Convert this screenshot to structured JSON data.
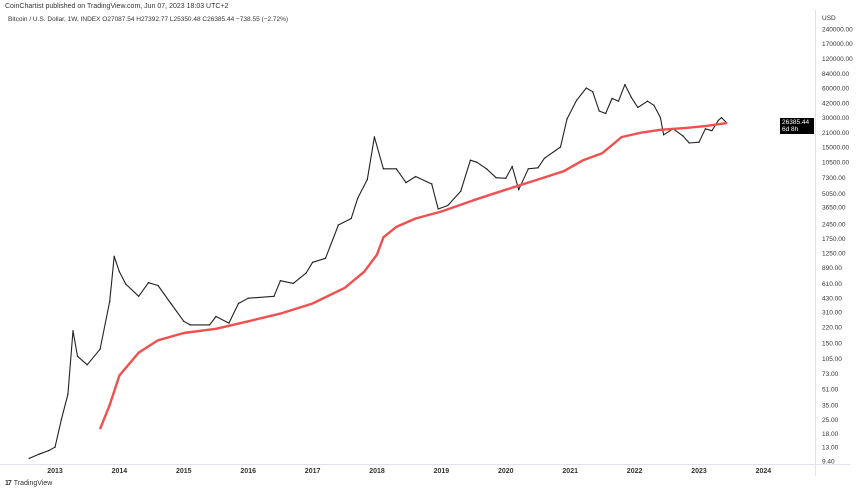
{
  "header": {
    "published": "CoinChartist published on TradingView.com, Jun 07, 2023 18:03 UTC+2",
    "symbol_line": "Bitcoin / U.S. Dollar, 1W, INDEX  O27087.54  H27392.77  L25350.48  C26385.44  −738.55 (−2.72%)"
  },
  "footer": {
    "brand": "TradingView"
  },
  "price_label": {
    "price": "26385.44",
    "countdown": "6d 8h"
  },
  "colors": {
    "price": "#222222",
    "ma": "#f0504f",
    "label_bg": "#000000"
  },
  "chart_data": {
    "type": "line",
    "y_scale": "log",
    "currency": "USD",
    "ylim": [
      9.4,
      240000
    ],
    "xlim": [
      2012.6,
      2024.7
    ],
    "y_ticks": [
      "240000.00",
      "170000.00",
      "120000.00",
      "84000.00",
      "60000.00",
      "42000.00",
      "30000.00",
      "21000.00",
      "15000.00",
      "10500.00",
      "7300.00",
      "5050.00",
      "3650.00",
      "2450.00",
      "1750.00",
      "1250.00",
      "890.00",
      "610.00",
      "430.00",
      "310.00",
      "220.00",
      "150.00",
      "105.00",
      "73.00",
      "51.00",
      "35.00",
      "25.00",
      "18.00",
      "13.00",
      "9.40"
    ],
    "x_ticks": [
      "2013",
      "2014",
      "2015",
      "2016",
      "2017",
      "2018",
      "2019",
      "2020",
      "2021",
      "2022",
      "2023",
      "2024"
    ],
    "grid": false,
    "series": [
      {
        "role": "price",
        "x": [
          2012.6,
          2012.75,
          2012.9,
          2013.0,
          2013.1,
          2013.2,
          2013.28,
          2013.35,
          2013.5,
          2013.7,
          2013.85,
          2013.92,
          2014.0,
          2014.1,
          2014.3,
          2014.45,
          2014.6,
          2014.8,
          2015.0,
          2015.1,
          2015.4,
          2015.5,
          2015.7,
          2015.85,
          2016.0,
          2016.4,
          2016.5,
          2016.7,
          2016.9,
          2017.0,
          2017.2,
          2017.4,
          2017.6,
          2017.7,
          2017.85,
          2017.96,
          2018.1,
          2018.3,
          2018.45,
          2018.6,
          2018.85,
          2018.95,
          2019.1,
          2019.3,
          2019.45,
          2019.55,
          2019.7,
          2019.85,
          2020.0,
          2020.1,
          2020.2,
          2020.35,
          2020.5,
          2020.6,
          2020.85,
          2020.95,
          2021.1,
          2021.25,
          2021.35,
          2021.45,
          2021.55,
          2021.65,
          2021.75,
          2021.85,
          2021.95,
          2022.05,
          2022.2,
          2022.3,
          2022.4,
          2022.45,
          2022.6,
          2022.75,
          2022.85,
          2023.0,
          2023.1,
          2023.2,
          2023.3,
          2023.35,
          2023.43
        ],
        "y": [
          10,
          11,
          12,
          13,
          25,
          45,
          200,
          110,
          90,
          130,
          400,
          1150,
          800,
          600,
          450,
          620,
          580,
          380,
          250,
          230,
          230,
          280,
          240,
          380,
          430,
          450,
          650,
          610,
          780,
          1000,
          1100,
          2400,
          2800,
          4500,
          7000,
          19000,
          9000,
          9000,
          6500,
          7500,
          6300,
          3500,
          3800,
          5300,
          11000,
          10500,
          9000,
          7300,
          7200,
          9500,
          5500,
          9000,
          9200,
          11500,
          15000,
          29000,
          45000,
          60000,
          55000,
          35000,
          33000,
          47000,
          44000,
          65000,
          48000,
          38000,
          44000,
          40000,
          30000,
          20000,
          23000,
          19500,
          16500,
          16800,
          23000,
          22000,
          28000,
          30000,
          26385.44
        ]
      },
      {
        "role": "moving-average",
        "x": [
          2013.7,
          2013.85,
          2014.0,
          2014.3,
          2014.6,
          2015.0,
          2015.5,
          2016.0,
          2016.5,
          2017.0,
          2017.5,
          2017.8,
          2018.0,
          2018.1,
          2018.3,
          2018.6,
          2019.0,
          2019.5,
          2020.0,
          2020.5,
          2020.9,
          2021.2,
          2021.5,
          2021.8,
          2022.1,
          2022.4,
          2022.8,
          2023.1,
          2023.43
        ],
        "y": [
          20,
          35,
          70,
          120,
          160,
          190,
          210,
          250,
          300,
          380,
          550,
          800,
          1200,
          1800,
          2300,
          2800,
          3300,
          4300,
          5500,
          7000,
          8500,
          11000,
          13000,
          19000,
          21000,
          22500,
          23500,
          24500,
          26300
        ]
      }
    ]
  }
}
